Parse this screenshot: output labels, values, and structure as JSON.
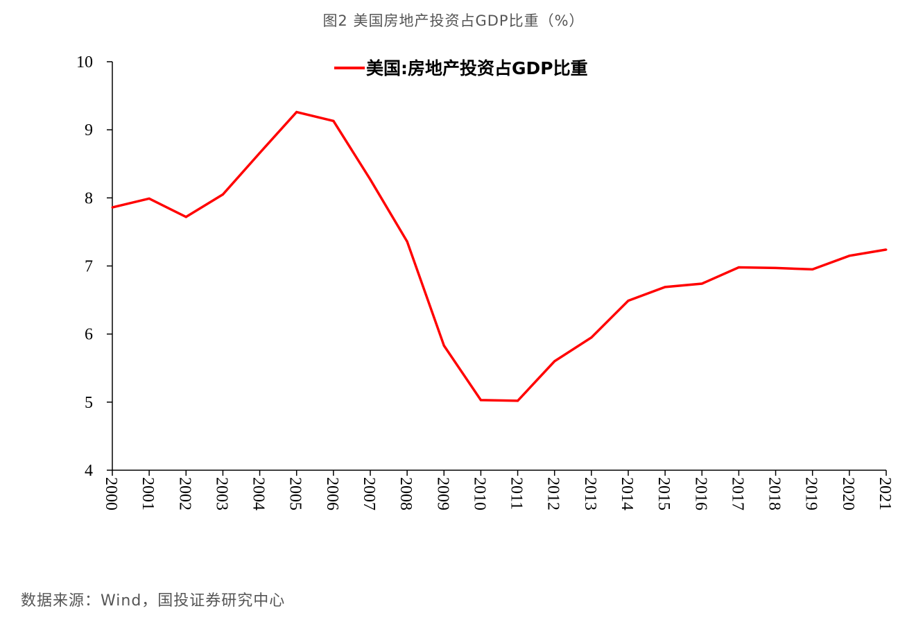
{
  "figure": {
    "title": "图2 美国房地产投资占GDP比重（%）",
    "source": "数据来源：Wind，国投证券研究中心"
  },
  "chart_data": {
    "type": "line",
    "title": "",
    "xlabel": "",
    "ylabel": "",
    "x": [
      "2000",
      "2001",
      "2002",
      "2003",
      "2004",
      "2005",
      "2006",
      "2007",
      "2008",
      "2009",
      "2010",
      "2011",
      "2012",
      "2013",
      "2014",
      "2015",
      "2016",
      "2017",
      "2018",
      "2019",
      "2020",
      "2021"
    ],
    "series": [
      {
        "name": "美国:房地产投资占GDP比重",
        "color": "#ff0000",
        "values": [
          7.86,
          7.99,
          7.72,
          8.05,
          8.66,
          9.26,
          9.13,
          8.27,
          7.36,
          5.83,
          5.03,
          5.02,
          5.6,
          5.95,
          6.49,
          6.69,
          6.74,
          6.98,
          6.97,
          6.95,
          7.15,
          7.24
        ]
      }
    ],
    "ylim": [
      4,
      10
    ],
    "yticks": [
      "4",
      "5",
      "6",
      "7",
      "8",
      "9",
      "10"
    ],
    "grid": false,
    "legend": "top-center"
  }
}
